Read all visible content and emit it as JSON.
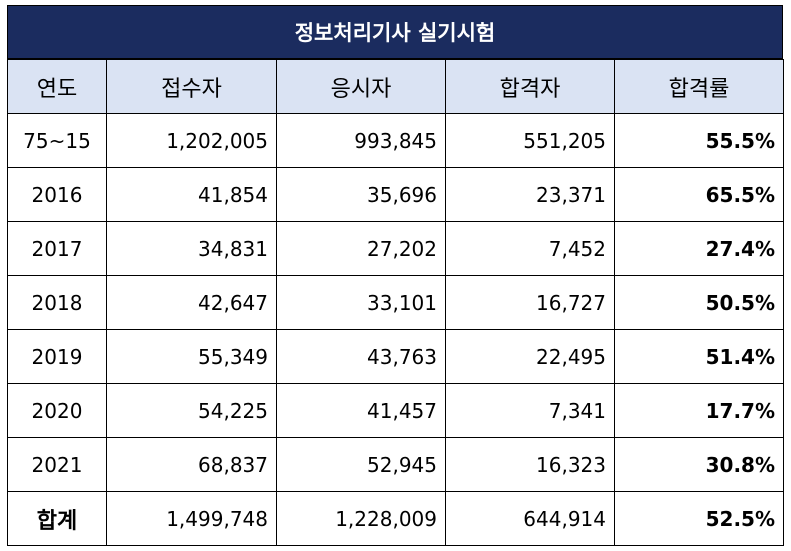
{
  "title": "정보처리기사 실기시험",
  "headers": [
    "연도",
    "접수자",
    "응시자",
    "합격자",
    "합격률"
  ],
  "rows": [
    {
      "year": "75~15",
      "applicants": "1,202,005",
      "examinees": "993,845",
      "passers": "551,205",
      "rate": "55.5%"
    },
    {
      "year": "2016",
      "applicants": "41,854",
      "examinees": "35,696",
      "passers": "23,371",
      "rate": "65.5%"
    },
    {
      "year": "2017",
      "applicants": "34,831",
      "examinees": "27,202",
      "passers": "7,452",
      "rate": "27.4%"
    },
    {
      "year": "2018",
      "applicants": "42,647",
      "examinees": "33,101",
      "passers": "16,727",
      "rate": "50.5%"
    },
    {
      "year": "2019",
      "applicants": "55,349",
      "examinees": "43,763",
      "passers": "22,495",
      "rate": "51.4%"
    },
    {
      "year": "2020",
      "applicants": "54,225",
      "examinees": "41,457",
      "passers": "7,341",
      "rate": "17.7%"
    },
    {
      "year": "2021",
      "applicants": "68,837",
      "examinees": "52,945",
      "passers": "16,323",
      "rate": "30.8%"
    }
  ],
  "total": {
    "year": "합계",
    "applicants": "1,499,748",
    "examinees": "1,228,009",
    "passers": "644,914",
    "rate": "52.5%"
  }
}
